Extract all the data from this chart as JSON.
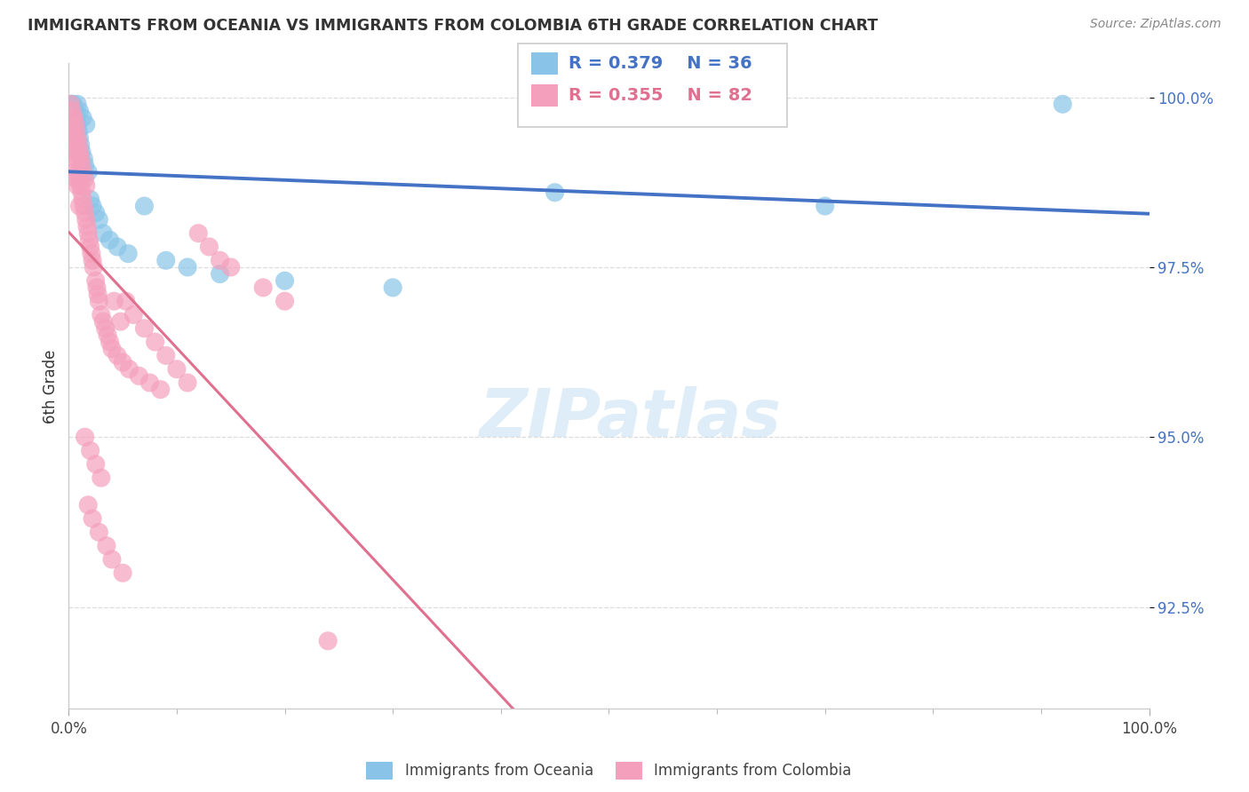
{
  "title": "IMMIGRANTS FROM OCEANIA VS IMMIGRANTS FROM COLOMBIA 6TH GRADE CORRELATION CHART",
  "source_text": "Source: ZipAtlas.com",
  "ylabel": "6th Grade",
  "xlim": [
    0.0,
    1.0
  ],
  "ylim": [
    0.91,
    1.005
  ],
  "ytick_labels": [
    "92.5%",
    "95.0%",
    "97.5%",
    "100.0%"
  ],
  "ytick_values": [
    0.925,
    0.95,
    0.975,
    1.0
  ],
  "xtick_labels": [
    "0.0%",
    "100.0%"
  ],
  "legend_r_oceania": "R = 0.379",
  "legend_n_oceania": "N = 36",
  "legend_r_colombia": "R = 0.355",
  "legend_n_colombia": "N = 82",
  "color_oceania": "#89C4E8",
  "color_colombia": "#F4A0BC",
  "color_oceania_line": "#4472C4",
  "color_colombia_line": "#E07090",
  "background_color": "#FFFFFF",
  "oceania_x": [
    0.003,
    0.004,
    0.005,
    0.006,
    0.006,
    0.007,
    0.007,
    0.008,
    0.008,
    0.009,
    0.01,
    0.01,
    0.011,
    0.012,
    0.013,
    0.014,
    0.015,
    0.016,
    0.018,
    0.02,
    0.022,
    0.025,
    0.028,
    0.032,
    0.038,
    0.045,
    0.055,
    0.07,
    0.09,
    0.11,
    0.14,
    0.2,
    0.3,
    0.45,
    0.7,
    0.92
  ],
  "oceania_y": [
    0.999,
    0.999,
    0.998,
    0.998,
    0.997,
    0.997,
    0.996,
    0.996,
    0.999,
    0.995,
    0.994,
    0.998,
    0.993,
    0.992,
    0.997,
    0.991,
    0.99,
    0.996,
    0.989,
    0.985,
    0.984,
    0.983,
    0.982,
    0.98,
    0.979,
    0.978,
    0.977,
    0.984,
    0.976,
    0.975,
    0.974,
    0.973,
    0.972,
    0.986,
    0.984,
    0.999
  ],
  "colombia_x": [
    0.002,
    0.003,
    0.003,
    0.004,
    0.004,
    0.005,
    0.005,
    0.005,
    0.006,
    0.006,
    0.006,
    0.007,
    0.007,
    0.007,
    0.008,
    0.008,
    0.008,
    0.009,
    0.009,
    0.01,
    0.01,
    0.01,
    0.011,
    0.011,
    0.012,
    0.012,
    0.013,
    0.013,
    0.014,
    0.015,
    0.015,
    0.016,
    0.016,
    0.017,
    0.018,
    0.019,
    0.02,
    0.021,
    0.022,
    0.023,
    0.025,
    0.026,
    0.027,
    0.028,
    0.03,
    0.032,
    0.034,
    0.036,
    0.038,
    0.04,
    0.042,
    0.045,
    0.048,
    0.05,
    0.053,
    0.056,
    0.06,
    0.065,
    0.07,
    0.075,
    0.08,
    0.085,
    0.09,
    0.1,
    0.11,
    0.12,
    0.13,
    0.14,
    0.015,
    0.02,
    0.025,
    0.03,
    0.018,
    0.022,
    0.028,
    0.035,
    0.04,
    0.05,
    0.15,
    0.18,
    0.2,
    0.24
  ],
  "colombia_y": [
    0.999,
    0.998,
    0.997,
    0.996,
    0.995,
    0.997,
    0.994,
    0.991,
    0.996,
    0.993,
    0.989,
    0.995,
    0.992,
    0.988,
    0.994,
    0.991,
    0.987,
    0.993,
    0.989,
    0.992,
    0.988,
    0.984,
    0.991,
    0.987,
    0.99,
    0.986,
    0.989,
    0.985,
    0.984,
    0.988,
    0.983,
    0.987,
    0.982,
    0.981,
    0.98,
    0.979,
    0.978,
    0.977,
    0.976,
    0.975,
    0.973,
    0.972,
    0.971,
    0.97,
    0.968,
    0.967,
    0.966,
    0.965,
    0.964,
    0.963,
    0.97,
    0.962,
    0.967,
    0.961,
    0.97,
    0.96,
    0.968,
    0.959,
    0.966,
    0.958,
    0.964,
    0.957,
    0.962,
    0.96,
    0.958,
    0.98,
    0.978,
    0.976,
    0.95,
    0.948,
    0.946,
    0.944,
    0.94,
    0.938,
    0.936,
    0.934,
    0.932,
    0.93,
    0.975,
    0.972,
    0.97,
    0.92
  ]
}
